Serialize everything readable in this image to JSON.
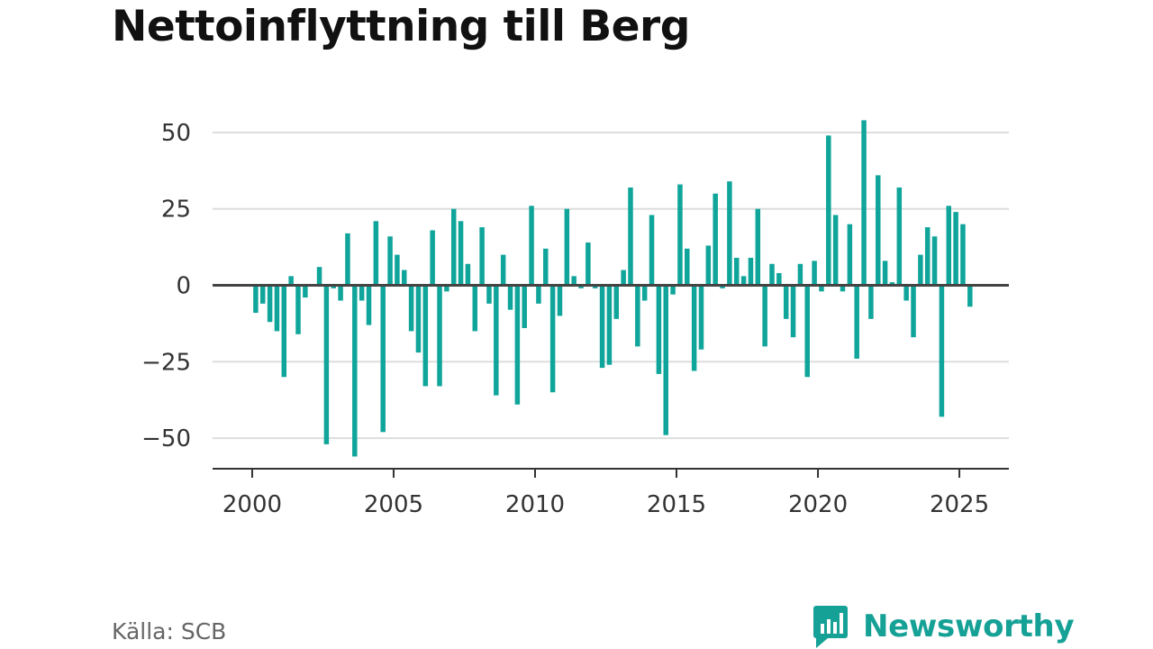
{
  "title": "Nettoinflyttning till Berg",
  "source": "Källa: SCB",
  "brand": {
    "name": "Newsworthy",
    "icon": "bar-chart-bubble-icon"
  },
  "colors": {
    "bar": "#10a59b",
    "brand": "#16a196",
    "grid": "#dddddd",
    "axis": "#333333",
    "text": "#333333"
  },
  "chart_data": {
    "type": "bar",
    "title": "Nettoinflyttning till Berg",
    "xlabel": "",
    "ylabel": "",
    "ylim": [
      -60,
      55
    ],
    "yticks": [
      50,
      25,
      0,
      -25,
      -50
    ],
    "ytick_labels": [
      "50",
      "25",
      "0",
      "−25",
      "−50"
    ],
    "xlim": [
      1998.6,
      2026.75
    ],
    "xticks": [
      2000,
      2005,
      2010,
      2015,
      2020,
      2025
    ],
    "xtick_labels": [
      "2000",
      "2005",
      "2010",
      "2015",
      "2020",
      "2025"
    ],
    "grid": true,
    "frequency": "quarterly",
    "start": "2000-Q1",
    "values": [
      -9,
      -6,
      -12,
      -15,
      -30,
      3,
      -16,
      -4,
      0,
      6,
      -52,
      -1,
      -5,
      17,
      -56,
      -5,
      -13,
      21,
      -48,
      16,
      10,
      5,
      -15,
      -22,
      -33,
      18,
      -33,
      -2,
      25,
      21,
      7,
      -15,
      19,
      -6,
      -36,
      10,
      -8,
      -39,
      -14,
      26,
      -6,
      12,
      -35,
      -10,
      25,
      3,
      -1,
      14,
      -1,
      -27,
      -26,
      -11,
      5,
      32,
      -20,
      -5,
      23,
      -29,
      -49,
      -3,
      33,
      12,
      -28,
      -21,
      13,
      30,
      -1,
      34,
      9,
      3,
      9,
      25,
      -20,
      7,
      4,
      -11,
      -17,
      7,
      -30,
      8,
      -2,
      49,
      23,
      -2,
      20,
      -24,
      54,
      -11,
      36,
      8,
      1,
      32,
      -5,
      -17,
      10,
      19,
      16,
      -43,
      26,
      24,
      20,
      -7
    ]
  }
}
